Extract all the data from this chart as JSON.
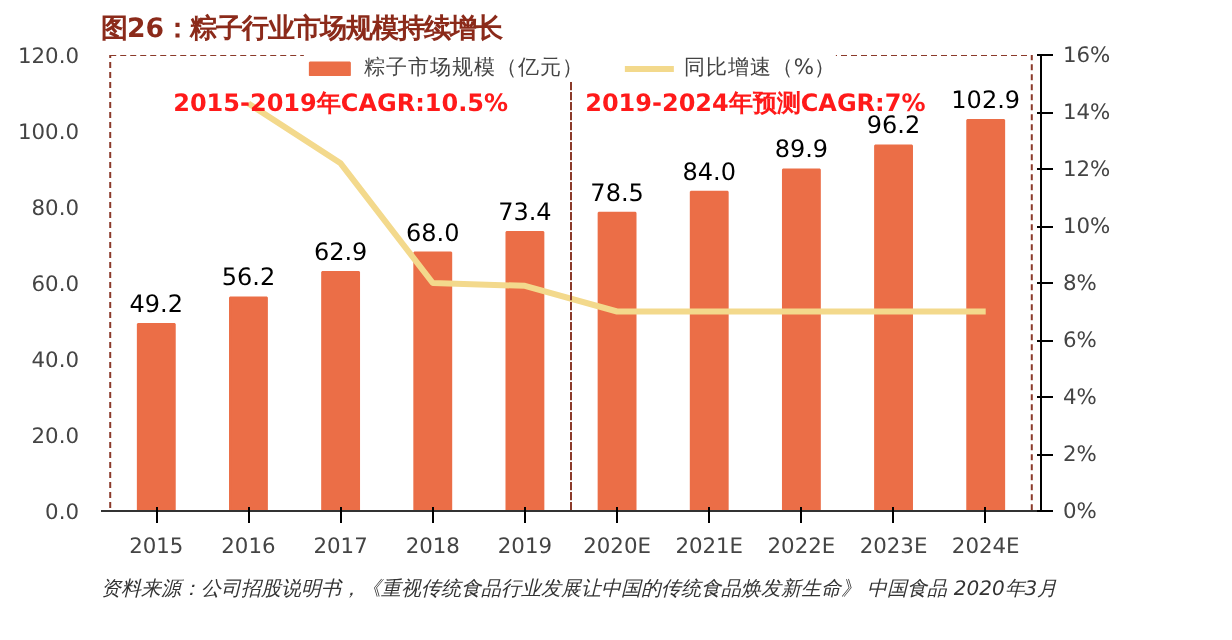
{
  "chart_data": {
    "type": "bar",
    "title": "图26：粽子行业市场规模持续增长",
    "categories": [
      "2015",
      "2016",
      "2017",
      "2018",
      "2019",
      "2020E",
      "2021E",
      "2022E",
      "2023E",
      "2024E"
    ],
    "series": [
      {
        "name": "粽子市场规模（亿元）",
        "color": "#eb6e47",
        "values": [
          49.2,
          56.2,
          62.9,
          68.0,
          73.4,
          78.5,
          84.0,
          89.9,
          96.2,
          102.9
        ],
        "value_labels": [
          "49.2",
          "56.2",
          "62.9",
          "68.0",
          "73.4",
          "78.5",
          "84.0",
          "89.9",
          "96.2",
          "102.9"
        ]
      },
      {
        "name": "同比增速（%）",
        "type": "line",
        "axis": "y2",
        "color": "#f3d98c",
        "values": [
          null,
          14.3,
          12.2,
          8.0,
          7.9,
          7.0,
          7.0,
          7.0,
          7.0,
          7.0
        ]
      }
    ],
    "ylim": [
      0,
      120
    ],
    "yticks": [
      {
        "value": 0,
        "label": "0.0"
      },
      {
        "value": 20,
        "label": "20.0"
      },
      {
        "value": 40,
        "label": "40.0"
      },
      {
        "value": 60,
        "label": "60.0"
      },
      {
        "value": 80,
        "label": "80.0"
      },
      {
        "value": 100,
        "label": "100.0"
      },
      {
        "value": 120,
        "label": "120.0"
      }
    ],
    "y2lim": [
      0,
      16
    ],
    "y2ticks": [
      {
        "value": 0,
        "label": "0%"
      },
      {
        "value": 2,
        "label": "2%"
      },
      {
        "value": 4,
        "label": "4%"
      },
      {
        "value": 6,
        "label": "6%"
      },
      {
        "value": 8,
        "label": "8%"
      },
      {
        "value": 10,
        "label": "10%"
      },
      {
        "value": 12,
        "label": "12%"
      },
      {
        "value": 14,
        "label": "14%"
      },
      {
        "value": 16,
        "label": "16%"
      }
    ],
    "grid": false,
    "legend": "top",
    "annotations": [
      "2015-2019年CAGR:10.5%",
      "2019-2024年预测CAGR:7%",
      "资料来源：公司招股说明书，《重视传统食品行业发展让中国的传统食品焕发新生命》 中国食品 2020年3月"
    ]
  }
}
